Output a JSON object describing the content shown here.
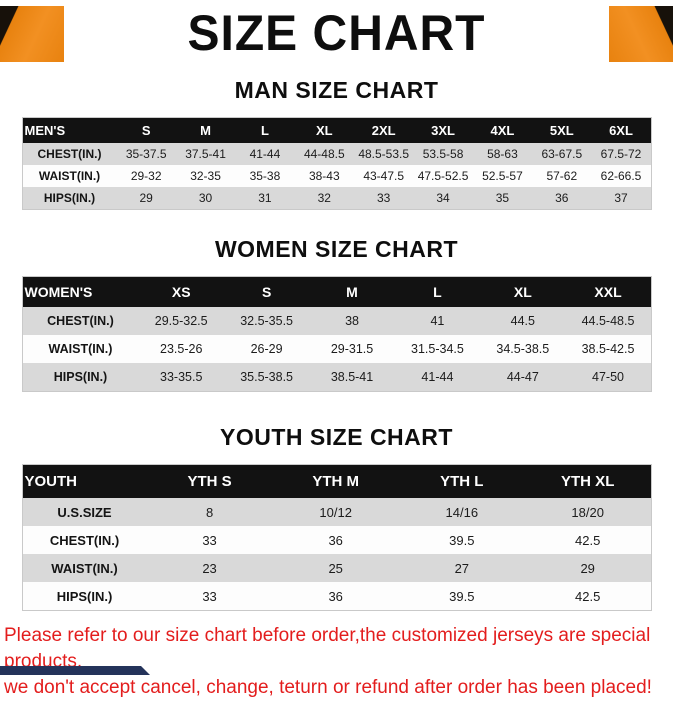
{
  "title": "SIZE CHART",
  "men": {
    "heading": "MAN SIZE CHART",
    "header": [
      "MEN'S",
      "S",
      "M",
      "L",
      "XL",
      "2XL",
      "3XL",
      "4XL",
      "5XL",
      "6XL"
    ],
    "rows": [
      {
        "label": "CHEST(IN.)",
        "values": [
          "35-37.5",
          "37.5-41",
          "41-44",
          "44-48.5",
          "48.5-53.5",
          "53.5-58",
          "58-63",
          "63-67.5",
          "67.5-72"
        ]
      },
      {
        "label": "WAIST(IN.)",
        "values": [
          "29-32",
          "32-35",
          "35-38",
          "38-43",
          "43-47.5",
          "47.5-52.5",
          "52.5-57",
          "57-62",
          "62-66.5"
        ]
      },
      {
        "label": "HIPS(IN.)",
        "values": [
          "29",
          "30",
          "31",
          "32",
          "33",
          "34",
          "35",
          "36",
          "37"
        ]
      }
    ]
  },
  "women": {
    "heading": "WOMEN SIZE CHART",
    "header": [
      "WOMEN'S",
      "XS",
      "S",
      "M",
      "L",
      "XL",
      "XXL"
    ],
    "rows": [
      {
        "label": "CHEST(IN.)",
        "values": [
          "29.5-32.5",
          "32.5-35.5",
          "38",
          "41",
          "44.5",
          "44.5-48.5"
        ]
      },
      {
        "label": "WAIST(IN.)",
        "values": [
          "23.5-26",
          "26-29",
          "29-31.5",
          "31.5-34.5",
          "34.5-38.5",
          "38.5-42.5"
        ]
      },
      {
        "label": "HIPS(IN.)",
        "values": [
          "33-35.5",
          "35.5-38.5",
          "38.5-41",
          "41-44",
          "44-47",
          "47-50"
        ]
      }
    ]
  },
  "youth": {
    "heading": "YOUTH SIZE CHART",
    "header": [
      "YOUTH",
      "YTH S",
      "YTH M",
      "YTH L",
      "YTH XL"
    ],
    "rows": [
      {
        "label": "U.S.SIZE",
        "values": [
          "8",
          "10/12",
          "14/16",
          "18/20"
        ]
      },
      {
        "label": "CHEST(IN.)",
        "values": [
          "33",
          "36",
          "39.5",
          "42.5"
        ]
      },
      {
        "label": "WAIST(IN.)",
        "values": [
          "23",
          "25",
          "27",
          "29"
        ]
      },
      {
        "label": "HIPS(IN.)",
        "values": [
          "33",
          "36",
          "39.5",
          "42.5"
        ]
      }
    ]
  },
  "footer": {
    "line1": "Please refer to our size chart before order,the customized jerseys are special products,",
    "line2": "we don't accept cancel, change, teturn or refund after order has been placed!"
  },
  "colors": {
    "accent_orange": "#e8820f",
    "table_header_black": "#121212",
    "row_gray": "#d9d9d9",
    "footer_red": "#e31d1d",
    "corner_navy": "#24335a"
  }
}
